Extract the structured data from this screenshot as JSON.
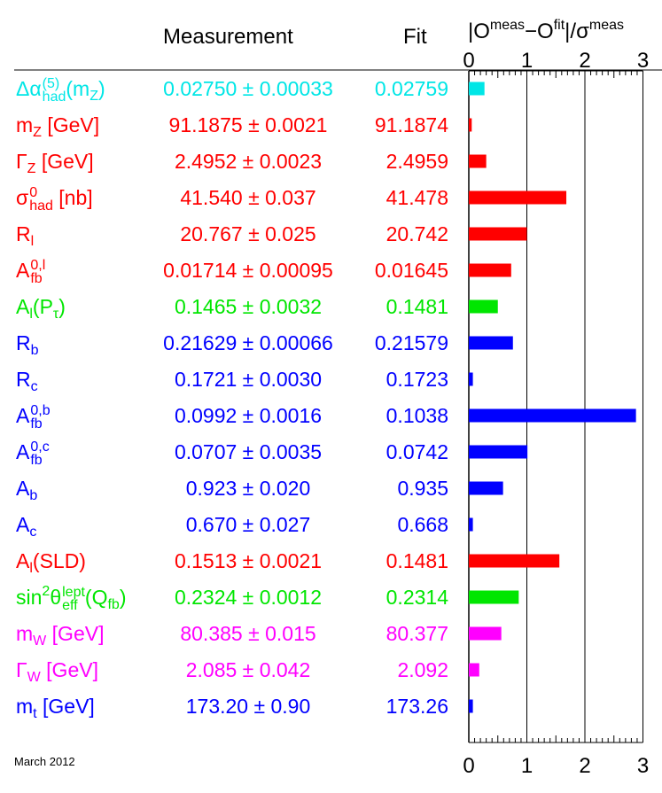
{
  "headers": {
    "measurement": "Measurement",
    "fit": "Fit",
    "pull_lhs": "|O",
    "pull_meas": "meas",
    "pull_dash": "−O",
    "pull_fit": "fit",
    "pull_over": "|/σ",
    "pull_meas2": "meas"
  },
  "footer": "March 2012",
  "colors": {
    "cyan": "#00e6e6",
    "red": "#ff0000",
    "green": "#00e600",
    "blue": "#0000ff",
    "magenta": "#ff00ff",
    "axis": "#000000"
  },
  "rows": [
    {
      "color": "cyan",
      "base": "Δα",
      "sub": "had",
      "sup": "(5)",
      "tail": "(m",
      "tail_sub": "Z",
      "tail_end": ")",
      "measurement": "0.02750 ± 0.00033",
      "fit": "0.02759"
    },
    {
      "color": "red",
      "base": "m",
      "sub": "Z",
      "tail": " [GeV]",
      "measurement": "91.1875 ± 0.0021",
      "fit": "91.1874"
    },
    {
      "color": "red",
      "base": "Γ",
      "sub": "Z",
      "tail": " [GeV]",
      "measurement": "2.4952 ± 0.0023",
      "fit": "2.4959"
    },
    {
      "color": "red",
      "base": "σ",
      "sub": "had",
      "sup": "0",
      "tail": " [nb]",
      "measurement": "41.540 ± 0.037",
      "fit": "41.478"
    },
    {
      "color": "red",
      "base": "R",
      "sub": "l",
      "measurement": "20.767 ± 0.025",
      "fit": "20.742"
    },
    {
      "color": "red",
      "base": "A",
      "sub": "fb",
      "sup": "0,l",
      "measurement": "0.01714 ± 0.00095",
      "fit": "0.01645"
    },
    {
      "color": "green",
      "base": "A",
      "sub": "l",
      "tail": "(P",
      "tail_sub": "τ",
      "tail_end": ")",
      "measurement": "0.1465 ± 0.0032",
      "fit": "0.1481"
    },
    {
      "color": "blue",
      "base": "R",
      "sub": "b",
      "measurement": "0.21629 ± 0.00066",
      "fit": "0.21579"
    },
    {
      "color": "blue",
      "base": "R",
      "sub": "c",
      "measurement": "0.1721 ± 0.0030",
      "fit": "0.1723"
    },
    {
      "color": "blue",
      "base": "A",
      "sub": "fb",
      "sup": "0,b",
      "measurement": "0.0992 ± 0.0016",
      "fit": "0.1038"
    },
    {
      "color": "blue",
      "base": "A",
      "sub": "fb",
      "sup": "0,c",
      "measurement": "0.0707 ± 0.0035",
      "fit": "0.0742"
    },
    {
      "color": "blue",
      "base": "A",
      "sub": "b",
      "measurement": "0.923 ± 0.020",
      "fit": "0.935"
    },
    {
      "color": "blue",
      "base": "A",
      "sub": "c",
      "measurement": "0.670 ± 0.027",
      "fit": "0.668"
    },
    {
      "color": "red",
      "base": "A",
      "sub": "l",
      "tail": "(SLD)",
      "measurement": "0.1513 ± 0.0021",
      "fit": "0.1481"
    },
    {
      "color": "green",
      "base": "sin",
      "base_sup": "2",
      "base2": "θ",
      "sub": "eff",
      "sup": "lept",
      "tail": "(Q",
      "tail_sub": "fb",
      "tail_end": ")",
      "measurement": "0.2324 ± 0.0012",
      "fit": "0.2314"
    },
    {
      "color": "magenta",
      "base": "m",
      "sub": "W",
      "tail": " [GeV]",
      "measurement": "80.385 ± 0.015",
      "fit": "80.377"
    },
    {
      "color": "magenta",
      "base": "Γ",
      "sub": "W",
      "tail": " [GeV]",
      "measurement": "2.085 ± 0.042",
      "fit": "2.092"
    },
    {
      "color": "blue",
      "base": "m",
      "sub": "t",
      "tail": " [GeV]",
      "measurement": "173.20 ± 0.90",
      "fit": "173.26"
    }
  ],
  "chart_data": {
    "type": "bar",
    "orientation": "horizontal",
    "xlabel": "|O^meas − O^fit| / σ^meas",
    "xlim": [
      0,
      3
    ],
    "xticks": [
      "0",
      "1",
      "2",
      "3"
    ],
    "grid": "vertical lines at 1, 2, 3",
    "categories": [
      "Δαhad(5)(mZ)",
      "mZ [GeV]",
      "ΓZ [GeV]",
      "σhad0 [nb]",
      "Rl",
      "Afb0,l",
      "Al(Pτ)",
      "Rb",
      "Rc",
      "Afb0,b",
      "Afb0,c",
      "Ab",
      "Ac",
      "Al(SLD)",
      "sin2θefflept(Qfb)",
      "mW [GeV]",
      "ΓW [GeV]",
      "mt [GeV]"
    ],
    "values": [
      0.27,
      0.05,
      0.3,
      1.68,
      1.0,
      0.73,
      0.5,
      0.76,
      0.07,
      2.88,
      1.01,
      0.59,
      0.07,
      1.56,
      0.86,
      0.56,
      0.18,
      0.07
    ]
  }
}
